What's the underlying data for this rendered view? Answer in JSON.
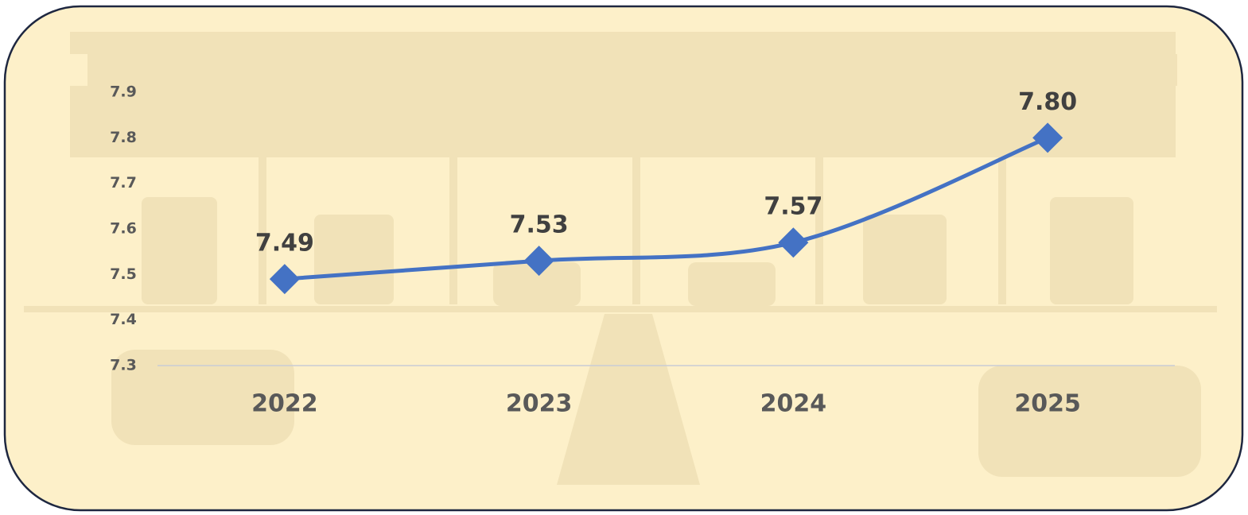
{
  "chart_data": {
    "type": "line",
    "categories": [
      "2022",
      "2023",
      "2024",
      "2025"
    ],
    "series": [
      {
        "color": "#4472c4",
        "values": [
          7.49,
          7.53,
          7.57,
          7.8
        ],
        "value_labels": [
          "7.49",
          "7.53",
          "7.57",
          "7.80"
        ]
      }
    ],
    "ylim": [
      7.3,
      7.9
    ],
    "yticks": [
      7.3,
      7.4,
      7.5,
      7.6,
      7.7,
      7.8,
      7.9
    ],
    "grid": false,
    "smooth": true,
    "marker": "diamond"
  }
}
